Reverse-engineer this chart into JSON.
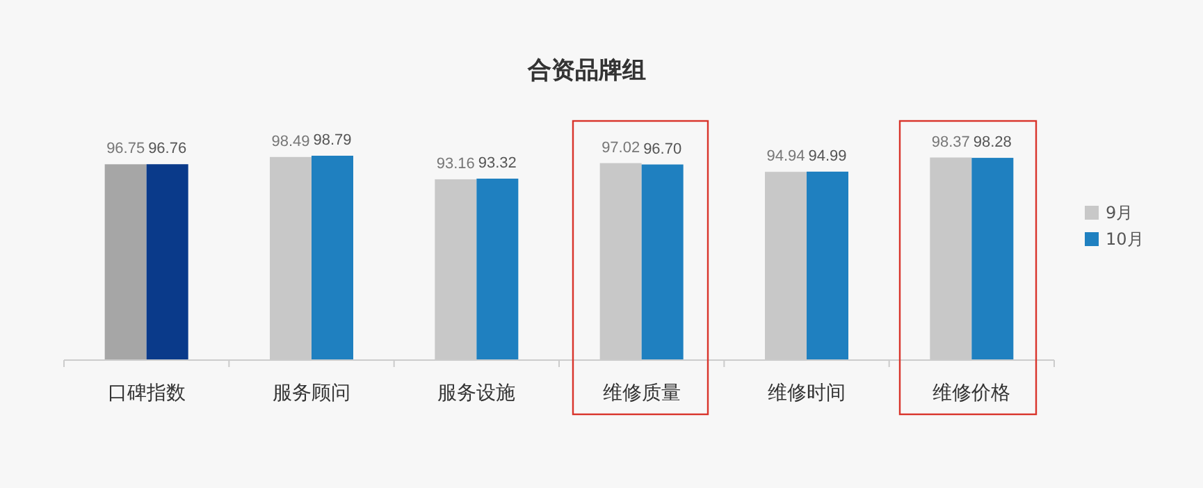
{
  "chart_data": {
    "type": "bar",
    "title": "合资品牌组",
    "categories": [
      "口碑指数",
      "服务顾问",
      "服务设施",
      "维修质量",
      "维修时间",
      "维修价格"
    ],
    "series": [
      {
        "name": "9月",
        "color": "#c8c8c8",
        "colors": [
          "#a6a6a6",
          "#c8c8c8",
          "#c8c8c8",
          "#c8c8c8",
          "#c8c8c8",
          "#c8c8c8"
        ],
        "values": [
          96.75,
          98.49,
          93.16,
          97.02,
          94.94,
          98.37
        ],
        "value_labels": [
          "96.75",
          "98.49",
          "93.16",
          "97.02",
          "94.94",
          "98.37"
        ]
      },
      {
        "name": "10月",
        "color": "#1f80c0",
        "colors": [
          "#0a3a8a",
          "#1f80c0",
          "#1f80c0",
          "#1f80c0",
          "#1f80c0",
          "#1f80c0"
        ],
        "values": [
          96.76,
          98.79,
          93.32,
          96.7,
          94.99,
          98.28
        ],
        "value_labels": [
          "96.76",
          "98.79",
          "93.32",
          "96.70",
          "94.99",
          "98.28"
        ]
      }
    ],
    "ylim": [
      50,
      98.79
    ],
    "tick_labels": "x",
    "legend": "right"
  }
}
